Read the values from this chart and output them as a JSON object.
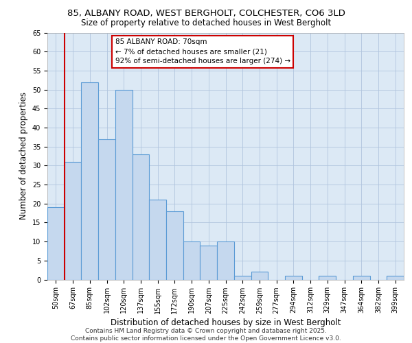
{
  "title_line1": "85, ALBANY ROAD, WEST BERGHOLT, COLCHESTER, CO6 3LD",
  "title_line2": "Size of property relative to detached houses in West Bergholt",
  "xlabel": "Distribution of detached houses by size in West Bergholt",
  "ylabel": "Number of detached properties",
  "categories": [
    "50sqm",
    "67sqm",
    "85sqm",
    "102sqm",
    "120sqm",
    "137sqm",
    "155sqm",
    "172sqm",
    "190sqm",
    "207sqm",
    "225sqm",
    "242sqm",
    "259sqm",
    "277sqm",
    "294sqm",
    "312sqm",
    "329sqm",
    "347sqm",
    "364sqm",
    "382sqm",
    "399sqm"
  ],
  "values": [
    19,
    31,
    52,
    37,
    50,
    33,
    21,
    18,
    10,
    9,
    10,
    1,
    2,
    0,
    1,
    0,
    1,
    0,
    1,
    0,
    1
  ],
  "bar_color": "#c5d8ee",
  "bar_edge_color": "#5b9bd5",
  "highlight_line_color": "#cc0000",
  "annotation_box_text": "85 ALBANY ROAD: 70sqm\n← 7% of detached houses are smaller (21)\n92% of semi-detached houses are larger (274) →",
  "annotation_box_edge_color": "#cc0000",
  "ylim": [
    0,
    65
  ],
  "yticks": [
    0,
    5,
    10,
    15,
    20,
    25,
    30,
    35,
    40,
    45,
    50,
    55,
    60,
    65
  ],
  "footer_line1": "Contains HM Land Registry data © Crown copyright and database right 2025.",
  "footer_line2": "Contains public sector information licensed under the Open Government Licence v3.0.",
  "chart_bg_color": "#dce9f5",
  "fig_bg_color": "#ffffff",
  "grid_color": "#b0c4de",
  "title_fontsize": 9.5,
  "title2_fontsize": 8.5,
  "axis_label_fontsize": 8.5,
  "tick_fontsize": 7,
  "footer_fontsize": 6.5,
  "annot_fontsize": 7.5
}
